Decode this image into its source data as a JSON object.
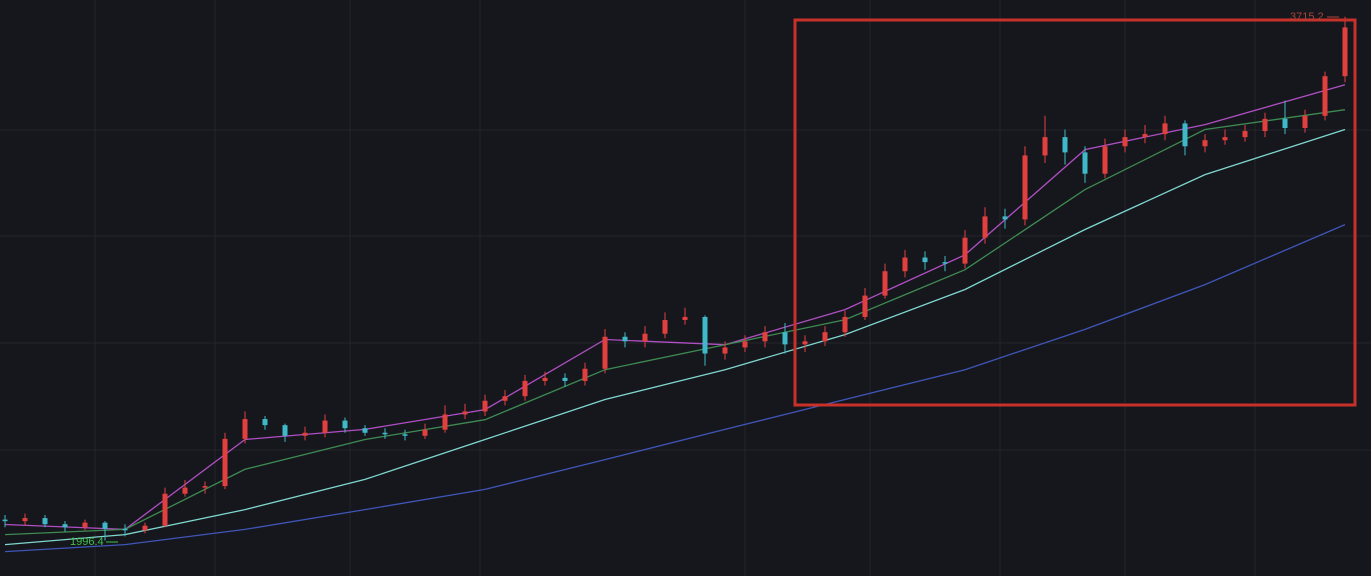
{
  "chart_data": {
    "type": "candlestick",
    "ylim": [
      1880,
      3770
    ],
    "up_color": "#e2403f",
    "down_color": "#3fb9c9",
    "open": [
      2065,
      2060,
      2070,
      2050,
      2040,
      2055,
      2035,
      2030,
      2045,
      2150,
      2170,
      2175,
      2330,
      2395,
      2375,
      2340,
      2350,
      2390,
      2365,
      2350,
      2345,
      2340,
      2360,
      2410,
      2420,
      2455,
      2470,
      2520,
      2530,
      2520,
      2560,
      2665,
      2650,
      2675,
      2720,
      2730,
      2610,
      2630,
      2650,
      2680,
      2640,
      2650,
      2680,
      2730,
      2800,
      2880,
      2925,
      2910,
      2905,
      2990,
      3060,
      3050,
      3260,
      3320,
      3270,
      3200,
      3290,
      3320,
      3330,
      3365,
      3290,
      3310,
      3320,
      3340,
      3380,
      3350,
      3390,
      3520
    ],
    "high": [
      2080,
      2085,
      2080,
      2060,
      2065,
      2060,
      2050,
      2055,
      2170,
      2195,
      2190,
      2350,
      2420,
      2405,
      2380,
      2370,
      2410,
      2400,
      2375,
      2365,
      2360,
      2380,
      2440,
      2445,
      2475,
      2490,
      2540,
      2550,
      2545,
      2580,
      2690,
      2680,
      2700,
      2745,
      2760,
      2735,
      2650,
      2670,
      2700,
      2710,
      2670,
      2700,
      2750,
      2825,
      2905,
      2950,
      2945,
      2930,
      3015,
      3090,
      3085,
      3290,
      3390,
      3345,
      3290,
      3315,
      3345,
      3360,
      3390,
      3375,
      3330,
      3345,
      3360,
      3400,
      3440,
      3410,
      3535,
      3715.2
    ],
    "low": [
      2040,
      2045,
      2040,
      2025,
      2030,
      1996.4,
      2010,
      2020,
      2040,
      2140,
      2150,
      2165,
      2315,
      2360,
      2320,
      2325,
      2335,
      2350,
      2340,
      2330,
      2325,
      2330,
      2350,
      2395,
      2405,
      2440,
      2455,
      2505,
      2500,
      2505,
      2545,
      2630,
      2630,
      2660,
      2705,
      2570,
      2590,
      2615,
      2630,
      2610,
      2615,
      2635,
      2665,
      2720,
      2790,
      2860,
      2885,
      2880,
      2890,
      2970,
      3020,
      3030,
      3235,
      3230,
      3170,
      3185,
      3270,
      3300,
      3310,
      3260,
      3270,
      3295,
      3305,
      3320,
      3330,
      3335,
      3375,
      3500
    ],
    "close": [
      2060,
      2070,
      2050,
      2040,
      2055,
      2035,
      2030,
      2045,
      2150,
      2170,
      2175,
      2330,
      2395,
      2375,
      2340,
      2350,
      2390,
      2365,
      2350,
      2345,
      2340,
      2360,
      2410,
      2420,
      2455,
      2470,
      2520,
      2530,
      2520,
      2560,
      2665,
      2650,
      2675,
      2720,
      2730,
      2610,
      2630,
      2650,
      2680,
      2640,
      2650,
      2680,
      2730,
      2800,
      2880,
      2925,
      2910,
      2905,
      2990,
      3060,
      3050,
      3260,
      3320,
      3270,
      3200,
      3290,
      3320,
      3330,
      3365,
      3290,
      3310,
      3320,
      3340,
      3380,
      3350,
      3390,
      3520,
      3680
    ],
    "ma_x": [
      0,
      6,
      12,
      18,
      24,
      30,
      36,
      42,
      48,
      54,
      60,
      67
    ],
    "lines": [
      {
        "color": "#b04fc4",
        "values": [
          2049,
          2033,
          2328,
          2361,
          2426,
          2656,
          2639,
          2754,
          2934,
          3279,
          3361,
          3492
        ]
      },
      {
        "color": "#3e8a52",
        "values": [
          2016,
          2033,
          2230,
          2328,
          2393,
          2557,
          2639,
          2721,
          2885,
          3148,
          3345,
          3410
        ]
      },
      {
        "color": "#7fd6cf",
        "values": [
          1983,
          2016,
          2098,
          2197,
          2328,
          2459,
          2557,
          2672,
          2820,
          3017,
          3197,
          3345
        ]
      },
      {
        "color": "#3f55b8",
        "values": [
          1960,
          1983,
          2033,
          2098,
          2164,
          2262,
          2361,
          2459,
          2557,
          2689,
          2836,
          3033
        ]
      }
    ],
    "low_label": "1996.4",
    "high_label": "3715.2"
  }
}
